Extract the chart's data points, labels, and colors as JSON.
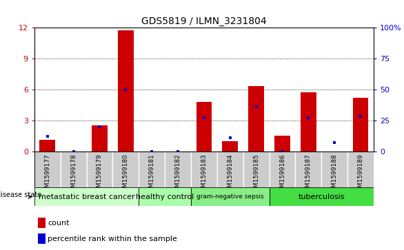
{
  "title": "GDS5819 / ILMN_3231804",
  "samples": [
    "GSM1599177",
    "GSM1599178",
    "GSM1599179",
    "GSM1599180",
    "GSM1599181",
    "GSM1599182",
    "GSM1599183",
    "GSM1599184",
    "GSM1599185",
    "GSM1599186",
    "GSM1599187",
    "GSM1599188",
    "GSM1599189"
  ],
  "counts": [
    1.1,
    0.0,
    2.5,
    11.7,
    0.0,
    0.0,
    4.8,
    1.0,
    6.3,
    1.5,
    5.7,
    0.0,
    5.2
  ],
  "percentiles": [
    12.0,
    0.0,
    20.0,
    50.0,
    0.0,
    0.0,
    27.0,
    11.0,
    36.0,
    0.0,
    27.0,
    7.0,
    28.0
  ],
  "ylim_left": [
    0,
    12
  ],
  "ylim_right": [
    0,
    100
  ],
  "yticks_left": [
    0,
    3,
    6,
    9,
    12
  ],
  "yticks_right": [
    0,
    25,
    50,
    75,
    100
  ],
  "bar_color": "#cc0000",
  "dot_color": "#0000cc",
  "groups": [
    {
      "label": "metastatic breast cancer",
      "start": 0,
      "end": 3,
      "color": "#ccffcc"
    },
    {
      "label": "healthy control",
      "start": 4,
      "end": 5,
      "color": "#aaffaa"
    },
    {
      "label": "gram-negative sepsis",
      "start": 6,
      "end": 8,
      "color": "#88ee88"
    },
    {
      "label": "tuberculosis",
      "start": 9,
      "end": 12,
      "color": "#44dd44"
    }
  ],
  "legend_count_label": "count",
  "legend_percentile_label": "percentile rank within the sample",
  "disease_state_label": "disease state",
  "bar_color_red": "#cc0000",
  "dot_color_blue": "#0000cc",
  "tick_bg_color": "#cccccc",
  "bar_width": 0.6
}
